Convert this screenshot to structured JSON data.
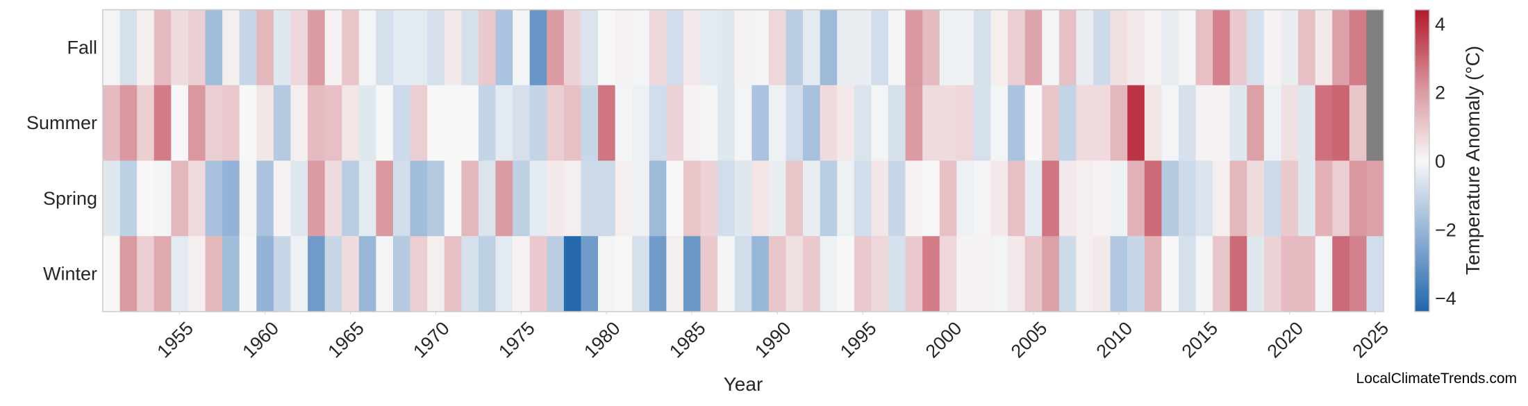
{
  "chart_data": {
    "type": "heatmap",
    "title": "",
    "xlabel": "Year",
    "ylabel": "",
    "x": [
      1951,
      1952,
      1953,
      1954,
      1955,
      1956,
      1957,
      1958,
      1959,
      1960,
      1961,
      1962,
      1963,
      1964,
      1965,
      1966,
      1967,
      1968,
      1969,
      1970,
      1971,
      1972,
      1973,
      1974,
      1975,
      1976,
      1977,
      1978,
      1979,
      1980,
      1981,
      1982,
      1983,
      1984,
      1985,
      1986,
      1987,
      1988,
      1989,
      1990,
      1991,
      1992,
      1993,
      1994,
      1995,
      1996,
      1997,
      1998,
      1999,
      2000,
      2001,
      2002,
      2003,
      2004,
      2005,
      2006,
      2007,
      2008,
      2009,
      2010,
      2011,
      2012,
      2013,
      2014,
      2015,
      2016,
      2017,
      2018,
      2019,
      2020,
      2021,
      2022,
      2023,
      2024,
      2025
    ],
    "x_ticks": [
      1955,
      1960,
      1965,
      1970,
      1975,
      1980,
      1985,
      1990,
      1995,
      2000,
      2005,
      2010,
      2015,
      2020,
      2025
    ],
    "y_categories": [
      "Fall",
      "Summer",
      "Spring",
      "Winter"
    ],
    "values": [
      [
        -0.1,
        -0.7,
        0.2,
        1.3,
        0.6,
        0.9,
        -1.8,
        0.2,
        -1.0,
        1.4,
        -0.5,
        0.7,
        2.0,
        0.1,
        1.1,
        -0.1,
        -0.7,
        -0.4,
        -0.4,
        -0.7,
        0.3,
        -0.7,
        1.0,
        -1.6,
        -0.1,
        -3.0,
        2.0,
        0.8,
        -0.6,
        0.0,
        0.1,
        -0.1,
        0.7,
        -0.8,
        0.3,
        -0.4,
        -0.5,
        0.1,
        -0.1,
        0.7,
        -1.3,
        -0.4,
        -1.9,
        -0.3,
        -0.3,
        -0.8,
        -0.1,
        2.1,
        1.3,
        -0.2,
        -0.2,
        -0.7,
        0.2,
        0.9,
        1.8,
        -0.1,
        1.2,
        -0.3,
        -0.9,
        0.5,
        0.3,
        0.1,
        -0.3,
        -0.1,
        1.2,
        2.5,
        1.0,
        -0.7,
        0.1,
        -0.3,
        1.2,
        0.3,
        1.9,
        2.6,
        null
      ],
      [
        1.3,
        2.1,
        0.9,
        2.6,
        0.0,
        2.1,
        0.9,
        1.0,
        0.0,
        0.4,
        -1.4,
        0.2,
        1.3,
        1.2,
        0.4,
        -0.5,
        0.0,
        -0.9,
        0.9,
        0.0,
        0.0,
        0.0,
        -1.1,
        -0.4,
        -0.7,
        -1.1,
        0.9,
        1.2,
        -1.0,
        2.7,
        -0.1,
        -0.2,
        -0.8,
        0.8,
        0.1,
        -0.1,
        -0.5,
        -0.1,
        -1.6,
        -0.2,
        -0.8,
        -1.7,
        0.6,
        0.3,
        -0.6,
        -0.1,
        -0.7,
        2.0,
        0.6,
        0.6,
        0.7,
        -0.7,
        -0.1,
        -1.6,
        0.0,
        1.1,
        -1.1,
        0.6,
        0.6,
        1.4,
        3.9,
        0.4,
        -0.1,
        -0.7,
        0.1,
        0.1,
        -0.5,
        1.9,
        -0.2,
        0.5,
        -0.5,
        2.8,
        3.0,
        1.1,
        null
      ],
      [
        -0.5,
        -1.2,
        0.0,
        -0.1,
        1.4,
        0.6,
        -1.7,
        -2.1,
        -0.1,
        -1.6,
        0.1,
        -0.5,
        2.0,
        0.6,
        -1.3,
        -0.4,
        2.1,
        -0.8,
        -1.8,
        -1.4,
        0.0,
        1.4,
        -0.6,
        2.0,
        -1.2,
        -0.4,
        0.3,
        0.2,
        -0.9,
        -0.9,
        0.2,
        -0.2,
        -1.9,
        0.0,
        1.1,
        0.8,
        -0.8,
        -0.5,
        0.4,
        -0.3,
        1.1,
        -0.3,
        -1.3,
        -0.2,
        -0.8,
        0.4,
        -1.0,
        0.1,
        0.0,
        1.2,
        -0.2,
        -0.1,
        0.3,
        1.2,
        -0.4,
        2.7,
        0.3,
        0.2,
        0.1,
        -0.2,
        1.5,
        2.9,
        -1.4,
        -0.9,
        -0.6,
        0.2,
        1.4,
        0.6,
        -0.9,
        1.0,
        -0.5,
        1.5,
        0.9,
        2.1,
        1.9
      ],
      [
        0.0,
        2.0,
        0.9,
        1.7,
        -0.4,
        0.2,
        1.4,
        -1.8,
        0.0,
        -2.1,
        -1.0,
        -0.2,
        -2.8,
        -1.0,
        0.6,
        -2.0,
        -0.1,
        -1.4,
        0.9,
        0.2,
        1.2,
        -0.7,
        -1.2,
        -0.4,
        0.1,
        1.0,
        -1.3,
        -4.3,
        -2.8,
        -0.1,
        0.0,
        -0.7,
        -2.8,
        0.2,
        -2.9,
        1.0,
        -0.1,
        -0.8,
        -2.0,
        1.1,
        0.5,
        1.0,
        -0.2,
        0.0,
        1.0,
        0.7,
        -0.7,
        1.0,
        2.6,
        0.7,
        0.1,
        0.1,
        -0.1,
        0.3,
        1.1,
        1.9,
        -0.9,
        0.2,
        0.3,
        -1.5,
        -1.0,
        1.5,
        0.0,
        -0.7,
        -0.1,
        1.1,
        2.9,
        -0.5,
        0.8,
        1.3,
        1.3,
        -0.1,
        2.9,
        2.5,
        -0.8
      ]
    ],
    "colorbar": {
      "label": "Temperature Anomaly (°C)",
      "range": [
        -4.4,
        4.4
      ],
      "ticks": [
        -4,
        -2,
        0,
        2,
        4
      ],
      "tick_labels": [
        "−4",
        "−2",
        "0",
        "2",
        "4"
      ],
      "colormap": [
        "#2166ac",
        "#8fb0d4",
        "#f7f7f7",
        "#d8929b",
        "#b2182b"
      ],
      "missing_color": "#808080"
    },
    "grid": false,
    "legend": "colorbar-right"
  },
  "footer": {
    "watermark": "LocalClimateTrends.com"
  }
}
